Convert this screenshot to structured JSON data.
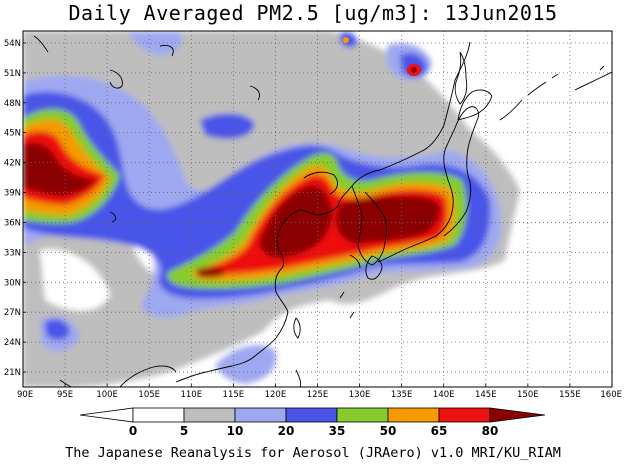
{
  "title": "Daily Averaged PM2.5 [ug/m3]: 13Jun2015",
  "footer": "The Japanese Reanalysis for Aerosol (JRAero) v1.0 MRI/KU_RIAM",
  "lat_labels": [
    "54N",
    "51N",
    "48N",
    "45N",
    "42N",
    "39N",
    "36N",
    "33N",
    "30N",
    "27N",
    "24N",
    "21N"
  ],
  "lon_labels": [
    "90E",
    "95E",
    "100E",
    "105E",
    "110E",
    "115E",
    "120E",
    "125E",
    "130E",
    "135E",
    "140E",
    "145E",
    "150E",
    "155E",
    "160E"
  ],
  "colorbar": {
    "labels": [
      "0",
      "5",
      "10",
      "20",
      "35",
      "50",
      "65",
      "80"
    ],
    "levels": [
      0,
      5,
      10,
      20,
      35,
      50,
      65,
      80
    ],
    "colors": [
      "#ffffff",
      "#bebebe",
      "#9ea8f0",
      "#4a55e8",
      "#86cc2c",
      "#f59a00",
      "#ee1111",
      "#8b0000"
    ]
  }
}
